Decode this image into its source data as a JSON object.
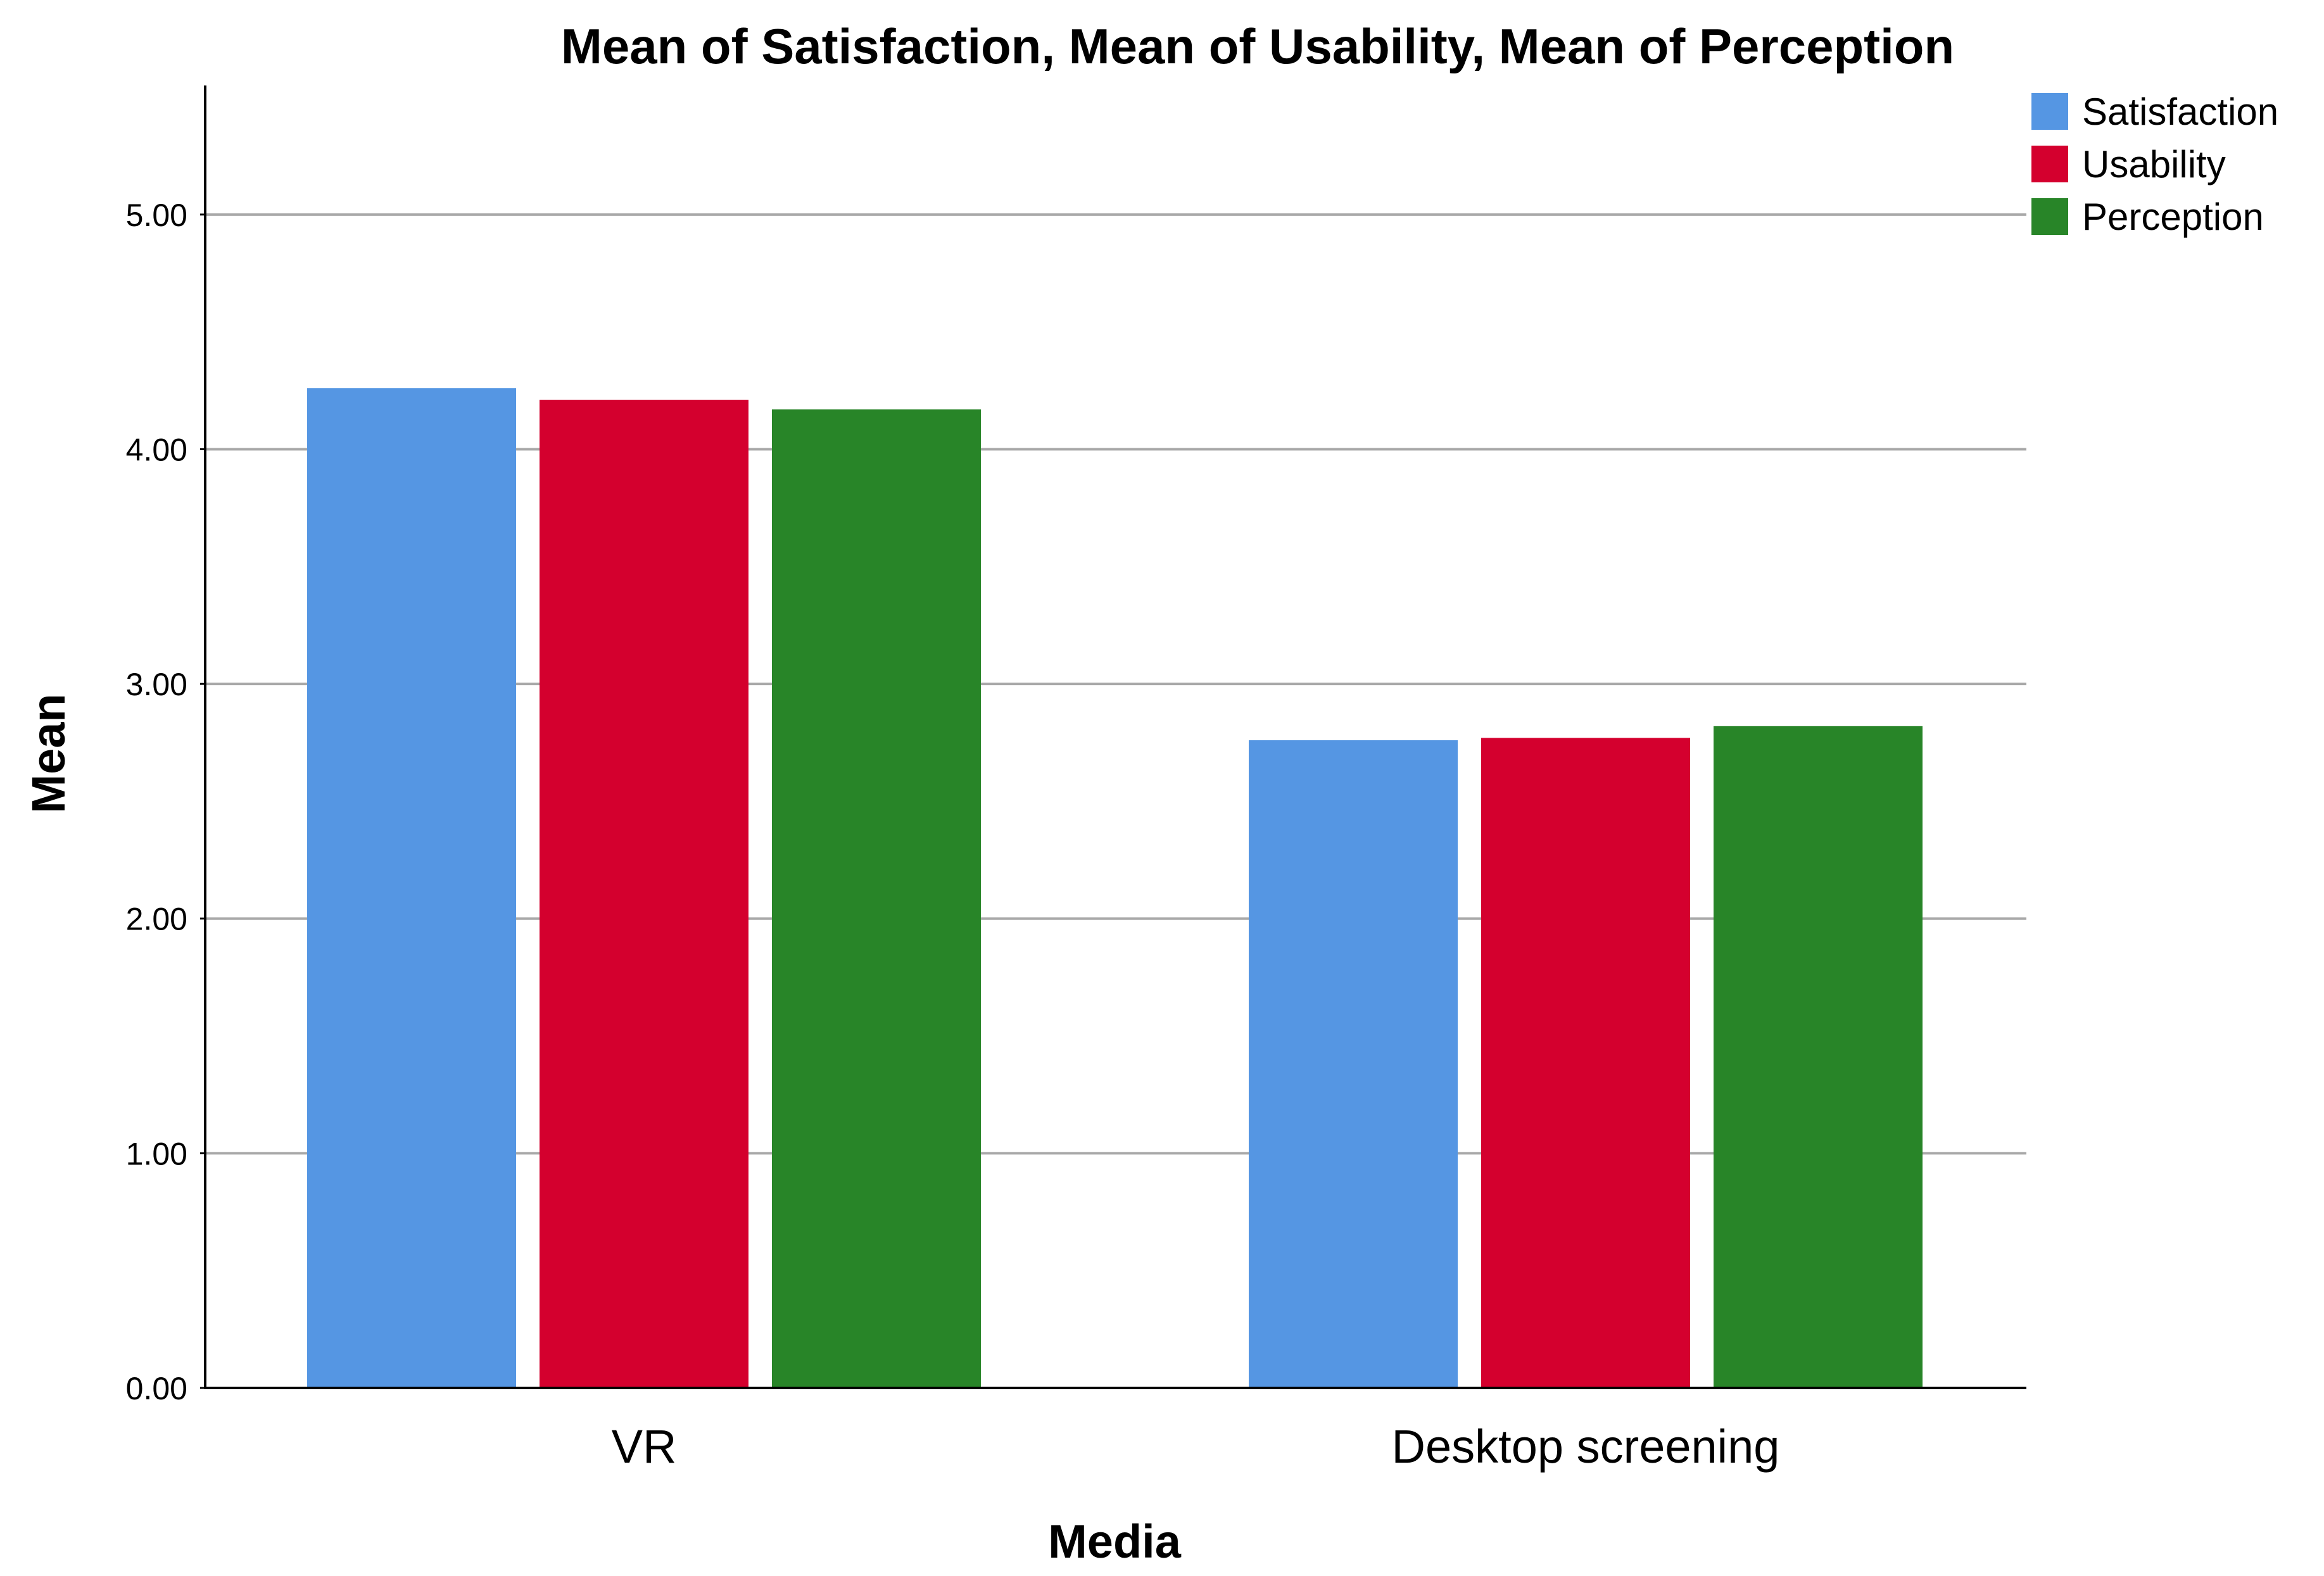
{
  "chart_data": {
    "type": "bar",
    "title": "Mean of Satisfaction, Mean of Usability, Mean of Perception",
    "xlabel": "Media",
    "ylabel": "Mean",
    "categories": [
      "VR",
      "Desktop screening"
    ],
    "series": [
      {
        "name": "Satisfaction",
        "color": "#5596E3",
        "values": [
          4.26,
          2.76
        ]
      },
      {
        "name": "Usability",
        "color": "#D4002E",
        "values": [
          4.21,
          2.77
        ]
      },
      {
        "name": "Perception",
        "color": "#288528",
        "values": [
          4.17,
          2.82
        ]
      }
    ],
    "ylim": [
      0,
      5.55
    ],
    "yticks": [
      "0.00",
      "1.00",
      "2.00",
      "3.00",
      "4.00",
      "5.00"
    ],
    "grid": true,
    "legend_position": "top-right"
  }
}
